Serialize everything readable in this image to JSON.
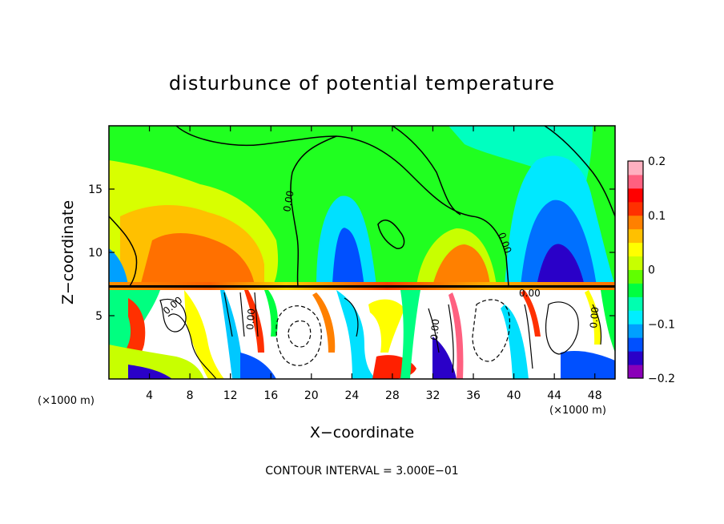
{
  "chart_data": {
    "type": "heatmap",
    "title": "disturbunce of potential temperature",
    "xlabel": "X−coordinate",
    "ylabel": "Z−coordinate",
    "x_unit": "(×1000 m)",
    "z_unit": "(×1000 m)",
    "xlim": [
      0,
      50
    ],
    "zlim": [
      0,
      20
    ],
    "x_ticks": [
      4,
      8,
      12,
      16,
      20,
      24,
      28,
      32,
      36,
      40,
      44,
      48
    ],
    "z_ticks": [
      5,
      10,
      15
    ],
    "colorbar": {
      "range": [
        -0.2,
        0.2
      ],
      "labels": [
        "0.2",
        "0.1",
        "0",
        "−0.1",
        "−0.2"
      ],
      "label_values": [
        0.2,
        0.1,
        0,
        -0.1,
        -0.2
      ],
      "colors": [
        "#8a00b8",
        "#2a00c8",
        "#0050ff",
        "#00a0ff",
        "#00eeff",
        "#00ffb0",
        "#00ff40",
        "#60ff00",
        "#c8ff00",
        "#ffff00",
        "#ffc000",
        "#ff8000",
        "#ff3000",
        "#ff0000",
        "#ff6080",
        "#ffb0c0"
      ]
    },
    "contour_labels": [
      "0.00",
      "0.00",
      "0.00",
      "0.00",
      "0.00",
      "0.00",
      "0.00"
    ],
    "contour_interval_text": "CONTOUR INTERVAL = 3.000E−01"
  }
}
